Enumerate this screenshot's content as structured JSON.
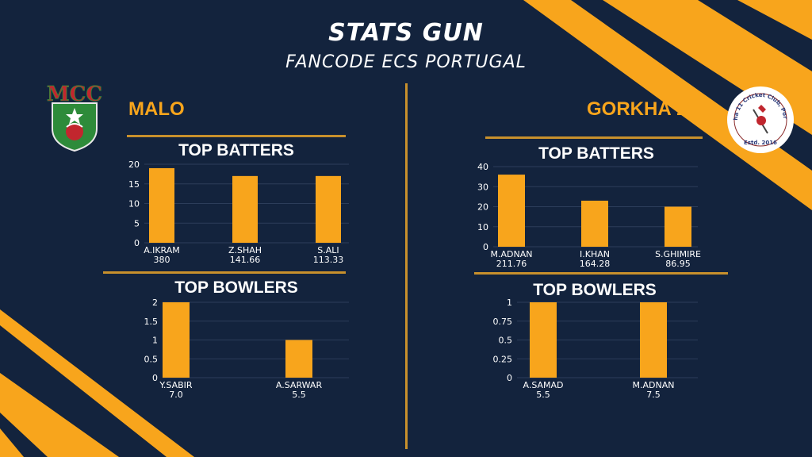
{
  "header": {
    "title": "STATS GUN",
    "subtitle": "FANCODE ECS PORTUGAL"
  },
  "colors": {
    "background": "#13233d",
    "accent": "#f8a51c",
    "divider": "#c8902c"
  },
  "teams": {
    "left": {
      "name": "MALO",
      "logo_text": "MCC"
    },
    "right": {
      "name": "GORKHA 11",
      "logo_text": "Gorkha 11 Cricket Club, Portugal",
      "logo_est": "Estd. 2016"
    }
  },
  "sections": {
    "batters": "TOP BATTERS",
    "bowlers": "TOP BOWLERS"
  },
  "chart_data": [
    {
      "id": "malo-batters",
      "type": "bar",
      "title": "TOP BATTERS",
      "ylim": [
        0,
        20
      ],
      "yticks": [
        0,
        5,
        10,
        15,
        20
      ],
      "categories": [
        "A.IKRAM",
        "Z.SHAH",
        "S.ALI"
      ],
      "sublabels": [
        "380",
        "141.66",
        "113.33"
      ],
      "values": [
        19,
        17,
        17
      ]
    },
    {
      "id": "malo-bowlers",
      "type": "bar",
      "title": "TOP BOWLERS",
      "ylim": [
        0,
        2
      ],
      "yticks": [
        "0",
        "0.5",
        "1",
        "1.5",
        "2"
      ],
      "categories": [
        "Y.SABIR",
        "A.SARWAR"
      ],
      "sublabels": [
        "7.0",
        "5.5"
      ],
      "values": [
        2,
        1
      ]
    },
    {
      "id": "gorkha-batters",
      "type": "bar",
      "title": "TOP BATTERS",
      "ylim": [
        0,
        40
      ],
      "yticks": [
        0,
        10,
        20,
        30,
        40
      ],
      "categories": [
        "M.ADNAN",
        "I.KHAN",
        "S.GHIMIRE"
      ],
      "sublabels": [
        "211.76",
        "164.28",
        "86.95"
      ],
      "values": [
        36,
        23,
        20
      ]
    },
    {
      "id": "gorkha-bowlers",
      "type": "bar",
      "title": "TOP BOWLERS",
      "ylim": [
        0,
        1
      ],
      "yticks": [
        "0",
        "0.25",
        "0.5",
        "0.75",
        "1"
      ],
      "categories": [
        "A.SAMAD",
        "M.ADNAN"
      ],
      "sublabels": [
        "5.5",
        "7.5"
      ],
      "values": [
        1,
        1
      ]
    }
  ]
}
